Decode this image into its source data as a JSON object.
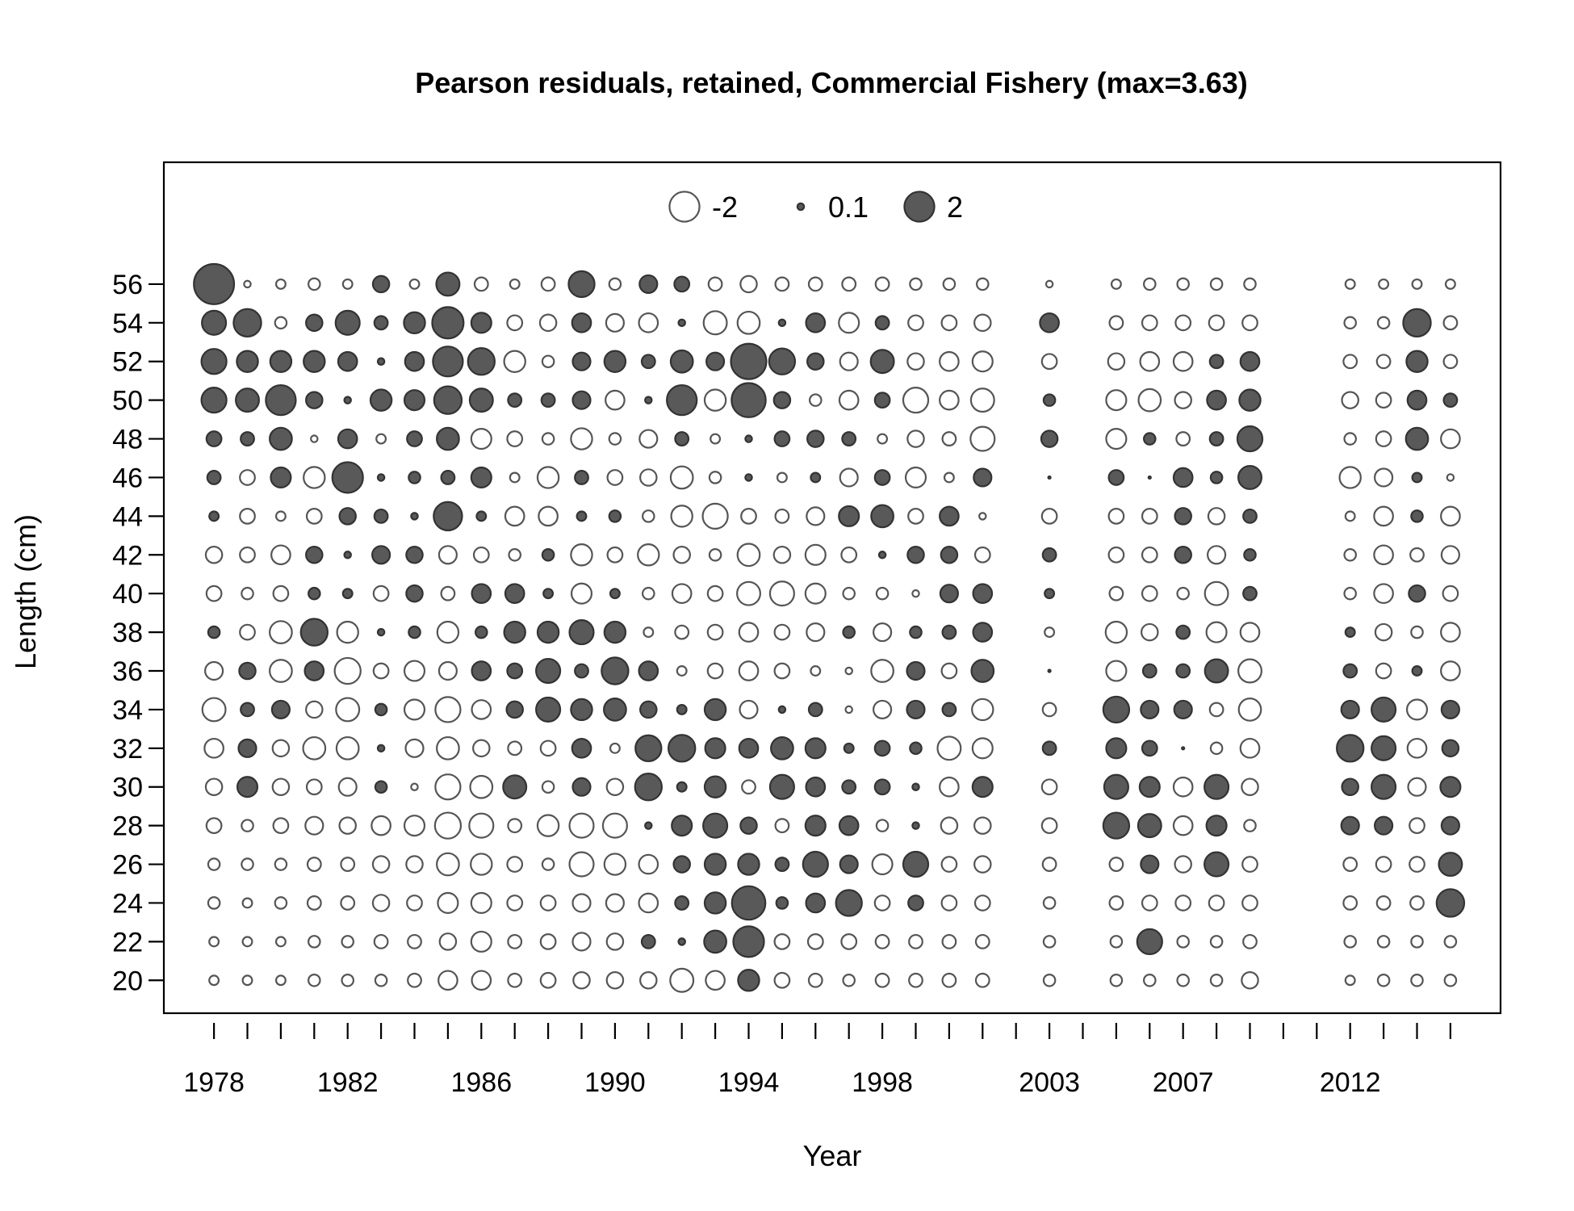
{
  "chart_data": {
    "type": "bubble",
    "title": "Pearson residuals, retained, Commercial Fishery (max=3.63)",
    "xlabel": "Year",
    "ylabel": "Length (cm)",
    "x_ticks": [
      "1978",
      "1982",
      "1986",
      "1990",
      "1994",
      "1998",
      "2003",
      "2007",
      "2012"
    ],
    "y_ticks": [
      20,
      22,
      24,
      26,
      28,
      30,
      32,
      34,
      36,
      38,
      40,
      42,
      44,
      46,
      48,
      50,
      52,
      54,
      56
    ],
    "xlim": [
      1976.5,
      2016.5
    ],
    "ylim": [
      18.3,
      62.3
    ],
    "legend": {
      "position": "top-center",
      "entries": [
        {
          "label": "-2",
          "value": -2
        },
        {
          "label": "0.1",
          "value": 0.1
        },
        {
          "label": "2",
          "value": 2
        }
      ]
    },
    "max_residual": 3.63,
    "years": [
      1978,
      1979,
      1980,
      1981,
      1982,
      1983,
      1984,
      1985,
      1986,
      1987,
      1988,
      1989,
      1990,
      1991,
      1992,
      1993,
      1994,
      1995,
      1996,
      1997,
      1998,
      1999,
      2000,
      2001,
      2003,
      2005,
      2006,
      2007,
      2008,
      2009,
      2012,
      2013,
      2014,
      2015
    ],
    "lengths": [
      20,
      22,
      24,
      26,
      28,
      30,
      32,
      34,
      36,
      38,
      40,
      42,
      44,
      46,
      48,
      50,
      52,
      54,
      56
    ],
    "residuals": [
      [
        -0.2,
        -0.2,
        -0.3,
        -0.3,
        -0.5,
        -0.6,
        -0.8,
        -1.2,
        -0.7,
        0.3,
        -0.5,
        -0.6,
        0.2,
        0.4,
        0.5,
        1.4,
        1.4,
        1.3,
        3.6
      ],
      [
        -0.2,
        -0.2,
        -0.2,
        -0.3,
        -0.3,
        0.9,
        0.7,
        0.4,
        0.6,
        -0.5,
        -0.3,
        -0.5,
        -0.5,
        -0.5,
        0.4,
        1.2,
        1.0,
        1.7,
        -0.1
      ],
      [
        -0.2,
        -0.2,
        -0.3,
        -0.3,
        -0.5,
        -0.6,
        -0.6,
        0.7,
        -1.1,
        -1.1,
        -0.5,
        -0.8,
        -0.2,
        0.9,
        1.1,
        2.0,
        1.0,
        -0.3,
        -0.2
      ],
      [
        -0.3,
        -0.3,
        -0.4,
        -0.4,
        -0.7,
        -0.5,
        -1.1,
        -0.6,
        0.8,
        1.6,
        0.3,
        0.6,
        -0.5,
        -1.0,
        -0.1,
        0.6,
        1.0,
        0.6,
        -0.3
      ],
      [
        -0.3,
        -0.3,
        -0.4,
        -0.4,
        -0.6,
        -0.7,
        -1.1,
        -1.2,
        -1.5,
        -1.0,
        0.2,
        0.1,
        0.6,
        2.1,
        0.8,
        0.1,
        0.8,
        1.3,
        -0.2
      ],
      [
        -0.3,
        -0.4,
        -0.6,
        -0.6,
        -0.8,
        0.3,
        0.1,
        0.3,
        -0.5,
        0.1,
        -0.5,
        0.7,
        0.4,
        0.1,
        -0.2,
        1.0,
        0.1,
        0.4,
        0.6
      ],
      [
        -0.4,
        -0.4,
        -0.5,
        -0.6,
        -0.9,
        -0.1,
        -0.7,
        -0.9,
        -0.9,
        0.3,
        0.6,
        0.6,
        0.1,
        0.3,
        0.5,
        0.9,
        0.8,
        1.0,
        -0.2
      ],
      [
        -0.8,
        -0.6,
        -0.9,
        -1.1,
        -1.5,
        -1.4,
        -1.1,
        -1.4,
        -0.7,
        -1.0,
        -0.4,
        -0.7,
        1.8,
        0.4,
        1.1,
        1.7,
        2.0,
        2.2,
        1.2
      ],
      [
        -0.8,
        -0.9,
        -0.9,
        -1.0,
        -1.3,
        -1.1,
        -0.6,
        -0.8,
        0.8,
        0.3,
        0.8,
        -0.5,
        0.2,
        0.9,
        -0.9,
        1.2,
        1.6,
        0.9,
        -0.4
      ],
      [
        -0.4,
        -0.4,
        -0.5,
        -0.5,
        -0.4,
        1.2,
        -0.4,
        0.6,
        0.5,
        1.0,
        0.8,
        -0.3,
        -0.8,
        -0.2,
        -0.5,
        0.4,
        -1.0,
        -0.5,
        -0.2
      ],
      [
        -0.5,
        -0.5,
        -0.5,
        -0.3,
        -1.0,
        -0.3,
        -0.5,
        1.3,
        1.3,
        1.0,
        0.2,
        0.3,
        -0.8,
        -1.0,
        -0.3,
        0.4,
        -0.3,
        -0.6,
        -0.4
      ],
      [
        -0.6,
        -0.7,
        -0.7,
        -1.3,
        -1.3,
        0.7,
        0.8,
        1.0,
        0.4,
        1.3,
        -0.9,
        -1.0,
        0.2,
        0.4,
        -1.0,
        0.7,
        0.7,
        0.8,
        1.5
      ],
      [
        -0.6,
        -0.6,
        -0.7,
        -1.0,
        -1.3,
        -0.6,
        -0.2,
        1.1,
        1.6,
        1.0,
        0.2,
        -0.5,
        0.3,
        -0.5,
        -0.3,
        -0.8,
        1.0,
        -0.7,
        -0.3
      ],
      [
        -0.6,
        0.4,
        -0.8,
        -0.8,
        0.1,
        1.6,
        1.5,
        0.6,
        0.8,
        -0.2,
        -0.3,
        -1.0,
        -0.3,
        -0.6,
        -0.7,
        0.1,
        0.4,
        -0.8,
        0.7
      ],
      [
        -1.2,
        0.1,
        0.4,
        0.6,
        0.9,
        0.2,
        1.6,
        0.2,
        -0.2,
        -0.4,
        -0.8,
        -0.6,
        -1.0,
        -1.1,
        0.4,
        2.0,
        1.1,
        0.1,
        0.5
      ],
      [
        -0.8,
        1.1,
        1.0,
        1.0,
        1.3,
        1.0,
        0.9,
        1.0,
        -0.5,
        -0.5,
        -0.5,
        -0.3,
        -1.4,
        -0.3,
        -0.2,
        -1.0,
        0.7,
        -1.2,
        -0.4
      ],
      [
        1.0,
        2.1,
        2.5,
        1.0,
        0.6,
        -0.4,
        0.8,
        -0.7,
        -0.8,
        -0.8,
        -1.2,
        -1.1,
        -0.5,
        0.1,
        0.1,
        2.6,
        2.8,
        -1.1,
        -0.6
      ],
      [
        -0.5,
        -0.5,
        0.3,
        0.4,
        -0.4,
        1.3,
        1.1,
        0.1,
        -0.5,
        -0.5,
        -1.3,
        -0.6,
        -0.4,
        -0.2,
        0.5,
        0.6,
        1.5,
        0.1,
        -0.4
      ],
      [
        -0.4,
        -0.5,
        0.8,
        1.4,
        0.9,
        0.8,
        0.9,
        0.4,
        -0.2,
        -0.7,
        -0.9,
        -0.9,
        -0.7,
        0.2,
        0.6,
        -0.3,
        0.6,
        0.8,
        -0.4
      ],
      [
        -0.3,
        -0.5,
        1.5,
        0.7,
        0.8,
        0.4,
        0.2,
        -0.1,
        -0.1,
        0.3,
        -0.3,
        -0.5,
        0.9,
        -0.7,
        0.4,
        -0.8,
        -0.7,
        -0.9,
        -0.4
      ],
      [
        -0.4,
        -0.4,
        -0.5,
        -0.9,
        -0.3,
        0.5,
        0.5,
        -0.7,
        -1.1,
        -0.7,
        -0.3,
        0.1,
        1.1,
        0.5,
        -0.2,
        0.5,
        1.2,
        0.4,
        -0.4
      ],
      [
        -0.4,
        -0.4,
        0.5,
        1.4,
        0.1,
        0.1,
        0.3,
        0.7,
        0.7,
        0.3,
        -0.1,
        0.6,
        -0.5,
        -0.9,
        -0.6,
        -1.4,
        -0.6,
        -0.5,
        -0.3
      ],
      [
        -0.4,
        -0.4,
        -0.5,
        -0.5,
        -0.6,
        -0.8,
        -1.2,
        0.4,
        -0.5,
        0.4,
        0.7,
        0.6,
        0.8,
        -0.2,
        -0.4,
        -0.8,
        -0.8,
        -0.5,
        -0.3
      ],
      [
        -0.4,
        -0.4,
        -0.5,
        -0.6,
        -0.6,
        0.9,
        -0.9,
        -1.0,
        1.1,
        0.8,
        0.8,
        -0.5,
        -0.1,
        0.7,
        -1.3,
        -1.2,
        -0.9,
        -0.6,
        -0.3
      ],
      [
        -0.3,
        -0.3,
        -0.3,
        -0.4,
        -0.5,
        -0.5,
        0.4,
        -0.4,
        0.0,
        -0.2,
        0.2,
        0.4,
        -0.5,
        0.0,
        0.6,
        0.3,
        -0.5,
        0.8,
        -0.1
      ],
      [
        -0.3,
        -0.3,
        -0.4,
        -0.4,
        1.5,
        1.3,
        0.9,
        1.5,
        -0.9,
        -1.0,
        -0.4,
        -0.5,
        -0.5,
        0.5,
        -0.9,
        -0.9,
        -0.6,
        -0.4,
        -0.2
      ],
      [
        -0.3,
        1.4,
        -0.5,
        0.7,
        1.2,
        0.9,
        0.5,
        0.7,
        0.4,
        -0.6,
        -0.5,
        -0.5,
        -0.5,
        0.0,
        0.3,
        -1.1,
        -0.8,
        -0.5,
        -0.3
      ],
      [
        -0.3,
        -0.3,
        -0.5,
        -0.6,
        -0.8,
        -0.8,
        0.0,
        0.7,
        0.4,
        0.4,
        -0.3,
        0.6,
        0.6,
        0.8,
        -0.4,
        -0.6,
        -0.8,
        -0.5,
        -0.3
      ],
      [
        -0.3,
        -0.3,
        -0.5,
        1.3,
        0.9,
        1.3,
        -0.3,
        -0.4,
        1.2,
        -0.9,
        -1.2,
        -0.7,
        -0.6,
        0.3,
        0.4,
        0.8,
        0.4,
        -0.5,
        -0.3
      ],
      [
        -0.6,
        -0.4,
        -0.5,
        -0.5,
        -0.3,
        -0.6,
        -0.8,
        -1.1,
        -1.2,
        -0.8,
        0.4,
        0.3,
        0.4,
        1.2,
        1.4,
        1.0,
        0.8,
        -0.5,
        -0.3
      ],
      [
        -0.2,
        -0.3,
        -0.4,
        -0.4,
        0.7,
        0.6,
        1.6,
        0.7,
        0.4,
        0.2,
        -0.3,
        -0.3,
        -0.2,
        -1.0,
        -0.3,
        -0.6,
        -0.4,
        -0.3,
        -0.2
      ],
      [
        -0.3,
        -0.3,
        -0.4,
        -0.5,
        0.7,
        1.3,
        1.3,
        1.3,
        -0.5,
        -0.6,
        -0.8,
        -0.8,
        -0.8,
        -0.7,
        -0.5,
        -0.5,
        -0.4,
        -0.3,
        -0.2
      ],
      [
        -0.3,
        -0.3,
        -0.4,
        -0.5,
        -0.5,
        -0.7,
        -0.8,
        -0.9,
        0.2,
        -0.3,
        0.6,
        -0.4,
        0.3,
        0.2,
        1.1,
        0.8,
        1.0,
        1.7,
        -0.2
      ],
      [
        -0.3,
        -0.3,
        1.7,
        1.2,
        0.7,
        0.9,
        0.6,
        0.7,
        -0.8,
        -0.8,
        -0.5,
        -0.7,
        -0.8,
        -0.1,
        -0.8,
        0.4,
        -0.4,
        -0.4,
        -0.2
      ]
    ]
  }
}
